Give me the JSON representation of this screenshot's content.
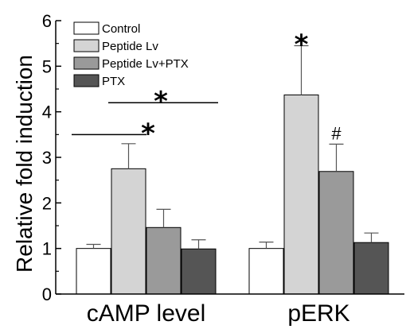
{
  "chart_data": {
    "type": "bar",
    "ylabel": "Relative fold induction",
    "xlabel": "",
    "ylim": [
      0,
      6
    ],
    "yticks": [
      "0",
      "1",
      "2",
      "3",
      "4",
      "5",
      "6"
    ],
    "categories": [
      "cAMP level",
      "pERK"
    ],
    "legend_position": "top-left",
    "series": [
      {
        "name": "Control",
        "color": "#ffffff",
        "values": [
          1.0,
          1.0
        ],
        "errors": [
          0.09,
          0.14
        ]
      },
      {
        "name": "Peptide Lv",
        "color": "#d4d4d4",
        "values": [
          2.75,
          4.37
        ],
        "errors": [
          0.55,
          1.08
        ]
      },
      {
        "name": "Peptide Lv+PTX",
        "color": "#9a9a9a",
        "values": [
          1.46,
          2.69
        ],
        "errors": [
          0.4,
          0.6
        ]
      },
      {
        "name": "PTX",
        "color": "#555555",
        "values": [
          0.99,
          1.13
        ],
        "errors": [
          0.2,
          0.21
        ]
      }
    ],
    "annotations": [
      {
        "text": "*",
        "category": 1,
        "series": 1
      },
      {
        "text": "#",
        "category": 1,
        "series": 2
      }
    ],
    "brackets": [
      {
        "text": "*",
        "category": 0,
        "from_series": 1,
        "to_series": 3,
        "y": 4.2
      },
      {
        "text": "*",
        "category": 0,
        "from_series": 0,
        "to_series": 1,
        "y": 3.5
      }
    ]
  }
}
